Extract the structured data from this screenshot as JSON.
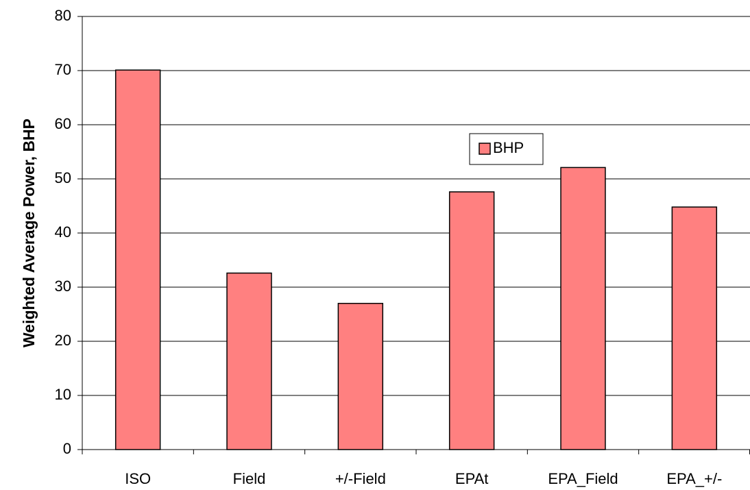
{
  "chart_data": {
    "type": "bar",
    "y_label": "Weighted Average Power, BHP",
    "categories": [
      "ISO",
      "Field",
      "+/-Field",
      "EPAt",
      "EPA_Field",
      "EPA_+/-"
    ],
    "series": [
      {
        "name": "BHP",
        "color": "#ff8080",
        "values": [
          70.1,
          32.6,
          27.0,
          47.6,
          52.1,
          44.8
        ]
      }
    ],
    "ylim": [
      0,
      80
    ],
    "yticks": [
      0,
      10,
      20,
      30,
      40,
      50,
      60,
      70,
      80
    ],
    "grid": true,
    "legend": "center"
  }
}
